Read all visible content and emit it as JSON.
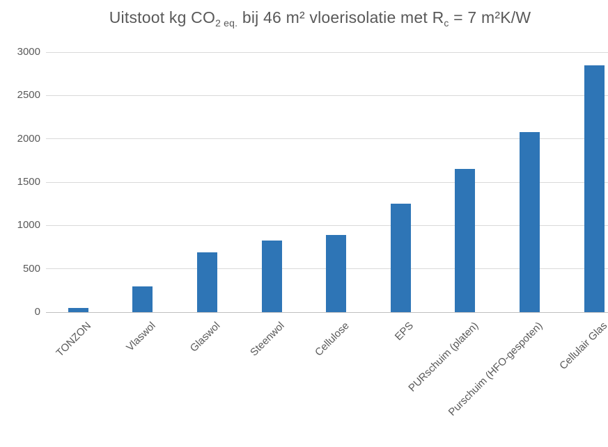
{
  "title": {
    "segments": [
      {
        "text": "Uitstoot kg CO",
        "subscript": false
      },
      {
        "text": "2 eq.",
        "subscript": true
      },
      {
        "text": " bij 46 m² vloerisolatie met R",
        "subscript": false
      },
      {
        "text": "c",
        "subscript": true
      },
      {
        "text": " = 7 m²K/W",
        "subscript": false
      }
    ],
    "color": "#595959"
  },
  "chart_data": {
    "type": "bar",
    "title": "Uitstoot kg CO2 eq. bij 46 m² vloerisolatie met Rc = 7 m²K/W",
    "categories": [
      "TONZON",
      "Vlaswol",
      "Glaswol",
      "Steenwol",
      "Cellulose",
      "EPS",
      "PURschuim (platen)",
      "Purschuim (HFO-gespoten)",
      "Cellulair Glas"
    ],
    "values": [
      45,
      300,
      690,
      830,
      890,
      1250,
      1650,
      2080,
      2850
    ],
    "xlabel": "",
    "ylabel": "",
    "ylim": [
      0,
      3000
    ],
    "yticks": [
      0,
      500,
      1000,
      1500,
      2000,
      2500,
      3000
    ],
    "grid": true,
    "legend": false,
    "bar_color": "#2E75B6",
    "gridline_color": "#D9D9D9",
    "axis_line_color": "#BFBFBF",
    "tick_label_color": "#595959",
    "x_label_color": "#595959"
  }
}
